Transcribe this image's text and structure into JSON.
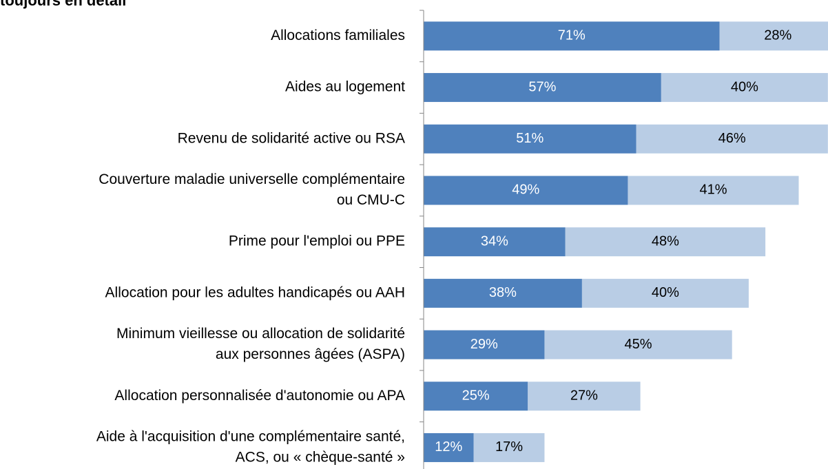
{
  "chart_data": {
    "type": "stacked-bar-horizontal",
    "title": "toujours en détail",
    "categories": [
      [
        "Allocations familiales"
      ],
      [
        "Aides au logement"
      ],
      [
        "Revenu de solidarité active ou RSA"
      ],
      [
        "Couverture maladie universelle complémentaire",
        "ou CMU-C"
      ],
      [
        "Prime pour l'emploi ou PPE"
      ],
      [
        "Allocation pour les adultes handicapés ou AAH"
      ],
      [
        "Minimum vieillesse ou allocation de solidarité",
        "aux personnes âgées (ASPA)"
      ],
      [
        "Allocation personnalisée d'autonomie ou APA"
      ],
      [
        "Aide à l'acquisition d'une complémentaire santé,",
        "ACS, ou « chèque-santé »"
      ]
    ],
    "series": [
      {
        "color": "#4f81bd",
        "label_color": "#ffffff",
        "values": [
          71,
          57,
          51,
          49,
          34,
          38,
          29,
          25,
          12
        ],
        "value_labels": [
          "71%",
          "57%",
          "51%",
          "49%",
          "34%",
          "38%",
          "29%",
          "25%",
          "12%"
        ]
      },
      {
        "color": "#b9cde5",
        "label_color": "#000000",
        "values": [
          28,
          40,
          46,
          41,
          48,
          40,
          45,
          27,
          17
        ],
        "value_labels": [
          "28%",
          "40%",
          "46%",
          "41%",
          "48%",
          "40%",
          "45%",
          "27%",
          "17%"
        ]
      }
    ],
    "xlim": [
      0,
      100
    ]
  }
}
